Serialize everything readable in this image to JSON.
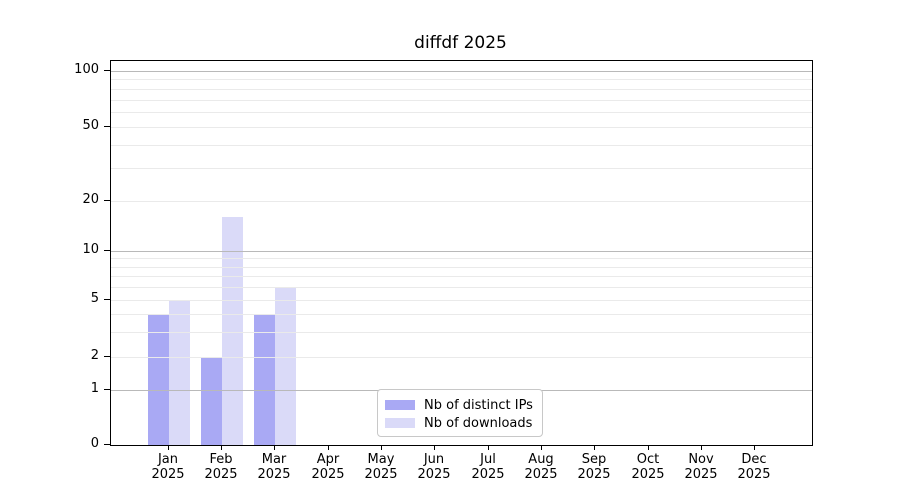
{
  "title": "diffdf 2025",
  "chart_data": {
    "type": "bar",
    "title": "diffdf 2025",
    "categories": [
      "Jan",
      "Feb",
      "Mar",
      "Apr",
      "May",
      "Jun",
      "Jul",
      "Aug",
      "Sep",
      "Oct",
      "Nov",
      "Dec"
    ],
    "year": "2025",
    "series": [
      {
        "name": "Nb of distinct IPs",
        "color": "#a9a9f4",
        "values": [
          4,
          2,
          4,
          0,
          0,
          0,
          0,
          0,
          0,
          0,
          0,
          0
        ]
      },
      {
        "name": "Nb of downloads",
        "color": "#dadaf8",
        "values": [
          5,
          16,
          6,
          0,
          0,
          0,
          0,
          0,
          0,
          0,
          0,
          0
        ]
      }
    ],
    "xlabel": "",
    "ylabel": "",
    "yscale": "log-with-zero-floor",
    "ylim": [
      0,
      113
    ],
    "yticks": [
      0,
      1,
      2,
      5,
      10,
      20,
      50,
      100
    ],
    "ytick_labels": [
      "0",
      "1",
      "2",
      "5",
      "10",
      "20",
      "50",
      "100"
    ],
    "major_gridline_values": [
      1,
      10,
      100
    ],
    "labeled_minor_gridline_values": [
      2,
      5,
      20,
      50
    ],
    "unlabeled_minor_gridline_values": [
      3,
      4,
      6,
      7,
      8,
      9,
      30,
      40,
      60,
      70,
      80,
      90
    ],
    "grid": true,
    "legend_position": "lower center"
  },
  "legend": {
    "items": [
      {
        "label": "Nb of distinct IPs",
        "color": "#a9a9f4"
      },
      {
        "label": "Nb of downloads",
        "color": "#dadaf8"
      }
    ]
  },
  "colors": {
    "bar_distinct_ips": "#a9a9f4",
    "bar_downloads": "#dadaf8",
    "grid_major": "#b9b9b9",
    "grid_minor": "#eaeaea",
    "axis": "#000000",
    "background": "#ffffff"
  }
}
